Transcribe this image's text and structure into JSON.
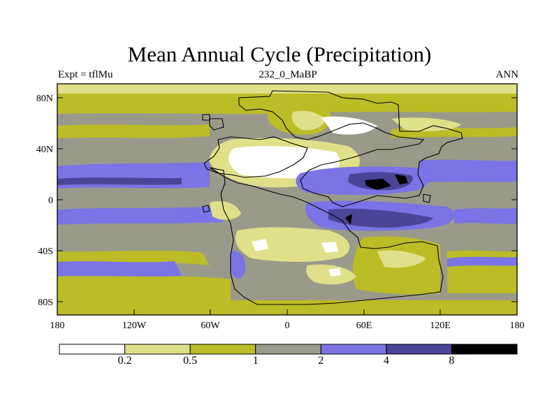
{
  "title": "Mean Annual Cycle (Precipitation)",
  "subtitle_left": "Expt = tflMu",
  "subtitle_center": "232_0_MaBP",
  "subtitle_right": "ANN",
  "y_ticks": [
    "80N",
    "40N",
    "0",
    "40S",
    "80S"
  ],
  "x_ticks": [
    "180",
    "120W",
    "60W",
    "0",
    "60E",
    "120E",
    "180"
  ],
  "colorbar": {
    "levels": [
      "0.2",
      "0.5",
      "1",
      "2",
      "4",
      "8"
    ],
    "colors": [
      "#ffffff",
      "#e1e08a",
      "#bcbc26",
      "#9a9a8a",
      "#7a74e6",
      "#4a4596",
      "#000000"
    ]
  }
}
